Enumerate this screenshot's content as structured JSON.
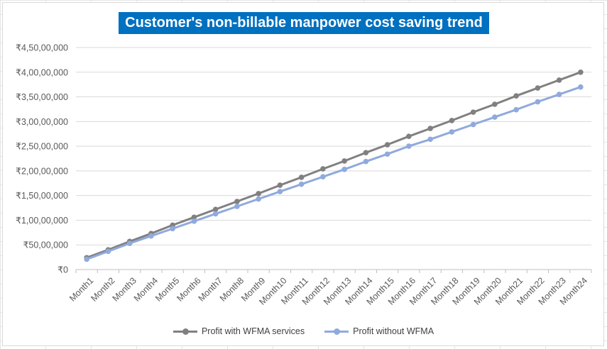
{
  "chart_data": {
    "type": "line",
    "title": "Customer's non-billable manpower cost saving trend",
    "xlabel": "",
    "ylabel": "",
    "categories": [
      "Month1",
      "Month2",
      "Month3",
      "Month4",
      "Month5",
      "Month6",
      "Month7",
      "Month8",
      "Month9",
      "Month10",
      "Month11",
      "Month12",
      "Month13",
      "Month14",
      "Month15",
      "Month16",
      "Month17",
      "Month18",
      "Month19",
      "Month20",
      "Month21",
      "Month22",
      "Month23",
      "Month24"
    ],
    "y_ticks": [
      "₹0",
      "₹50,00,000",
      "₹1,00,00,000",
      "₹1,50,00,000",
      "₹2,00,00,000",
      "₹2,50,00,000",
      "₹3,00,00,000",
      "₹3,50,00,000",
      "₹4,00,00,000",
      "₹4,50,00,000"
    ],
    "ylim": [
      0,
      45000000
    ],
    "grid": true,
    "legend_position": "bottom",
    "series": [
      {
        "name": "Profit with WFMA services",
        "color": "#808080",
        "values": [
          2400000,
          4000000,
          5700000,
          7300000,
          9000000,
          10600000,
          12200000,
          13800000,
          15400000,
          17100000,
          18700000,
          20400000,
          22000000,
          23700000,
          25300000,
          27000000,
          28600000,
          30200000,
          31900000,
          33500000,
          35200000,
          36800000,
          38400000,
          40000000
        ]
      },
      {
        "name": "Profit without WFMA",
        "color": "#8faadc",
        "values": [
          2100000,
          3700000,
          5300000,
          6800000,
          8300000,
          9800000,
          11300000,
          12800000,
          14300000,
          15800000,
          17300000,
          18800000,
          20300000,
          21900000,
          23400000,
          25000000,
          26400000,
          27900000,
          29400000,
          30900000,
          32400000,
          34000000,
          35500000,
          37000000
        ]
      }
    ]
  }
}
